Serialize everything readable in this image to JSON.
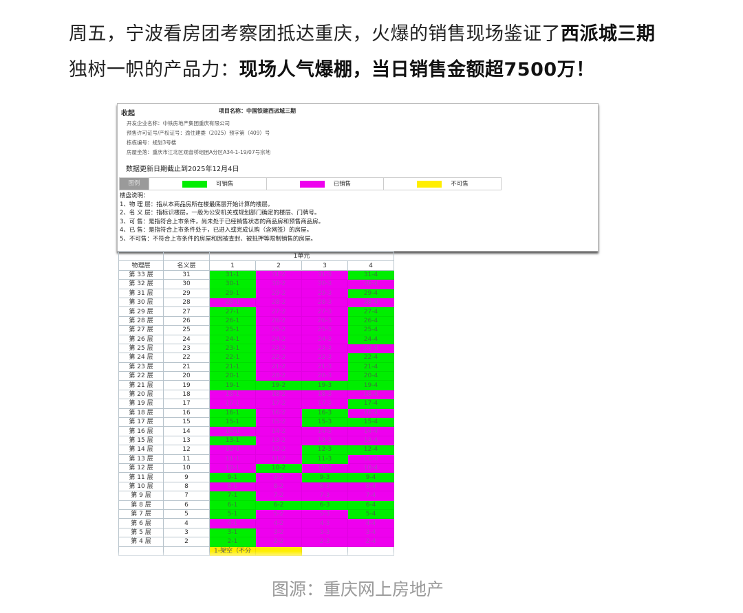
{
  "headline": {
    "part1": "周五，宁波看房团考察团抵达重庆，火爆的销售现场鉴证了",
    "bold1": "西派城三期",
    "part2": "独树一帜的产品力：",
    "bold2": "现场人气爆棚，当日销售金额超7500万！"
  },
  "panel": {
    "title": "收起",
    "project_name": "项目名称：中国铁建西派城三期",
    "info": [
      "开发企业名称：中铁房地产集团重庆有限公司",
      "预售许可证号/产权证号：渝住建委（2025）预字第（409）号",
      "栋栋编号：规划3号楼",
      "房屋坐落：重庆市江北区观音桥组团A分区A34-1-19/07号宗地"
    ],
    "update_date": "数据更新日期截止到2025年12月4日",
    "legend": {
      "header": "图例",
      "items": [
        {
          "label": "可销售",
          "color": "#00ee00"
        },
        {
          "label": "已销售",
          "color": "#ee00ee"
        },
        {
          "label": "不可售",
          "color": "#ffee00"
        }
      ]
    },
    "notes": [
      "楼盘说明：",
      "1、物 理 层：指从本商品房所在楼最底层开始计算的楼层。",
      "2、名 义 层：指标识楼层，一般为公安机关或规划部门确定的楼层、门牌号。",
      "3、可 售：是指符合上市条件，尚未处于已经销售状态的商品房和预售商品房。",
      "4、已 售：是指符合上市条件处于，已进入或完成认购（含网签）的房屋。",
      "5、不可售：不符合上市条件的房屋和因被查封、被抵押等限制销售的房屋。"
    ]
  },
  "table": {
    "unit_header": "1单元",
    "col_physical": "物理层",
    "col_nominal": "名义层",
    "unit_cols": [
      "1",
      "2",
      "3",
      "4"
    ],
    "rows": [
      {
        "physical": "第 33 层",
        "nominal": "31",
        "status": [
          "available",
          "sold",
          "sold",
          "available"
        ]
      },
      {
        "physical": "第 32 层",
        "nominal": "30",
        "status": [
          "available",
          "sold",
          "sold",
          "sold"
        ]
      },
      {
        "physical": "第 31 层",
        "nominal": "29",
        "status": [
          "available",
          "sold",
          "sold",
          "available"
        ]
      },
      {
        "physical": "第 30 层",
        "nominal": "28",
        "status": [
          "sold",
          "sold",
          "sold",
          "sold"
        ]
      },
      {
        "physical": "第 29 层",
        "nominal": "27",
        "status": [
          "available",
          "sold",
          "sold",
          "available"
        ]
      },
      {
        "physical": "第 28 层",
        "nominal": "26",
        "status": [
          "available",
          "sold",
          "sold",
          "available"
        ]
      },
      {
        "physical": "第 27 层",
        "nominal": "25",
        "status": [
          "available",
          "sold",
          "sold",
          "available"
        ]
      },
      {
        "physical": "第 26 层",
        "nominal": "24",
        "status": [
          "available",
          "sold",
          "sold",
          "available"
        ]
      },
      {
        "physical": "第 25 层",
        "nominal": "23",
        "status": [
          "available",
          "sold",
          "sold",
          "sold"
        ]
      },
      {
        "physical": "第 24 层",
        "nominal": "22",
        "status": [
          "available",
          "sold",
          "sold",
          "available"
        ]
      },
      {
        "physical": "第 23 层",
        "nominal": "21",
        "status": [
          "available",
          "sold",
          "sold",
          "available"
        ]
      },
      {
        "physical": "第 22 层",
        "nominal": "20",
        "status": [
          "available",
          "sold",
          "sold",
          "available"
        ]
      },
      {
        "physical": "第 21 层",
        "nominal": "19",
        "status": [
          "available",
          "available",
          "available",
          "available"
        ]
      },
      {
        "physical": "第 20 层",
        "nominal": "18",
        "status": [
          "sold",
          "sold",
          "sold",
          "sold"
        ]
      },
      {
        "physical": "第 19 层",
        "nominal": "17",
        "status": [
          "sold",
          "sold",
          "sold",
          "available"
        ]
      },
      {
        "physical": "第 18 层",
        "nominal": "16",
        "status": [
          "available",
          "sold",
          "available",
          "sold"
        ]
      },
      {
        "physical": "第 17 层",
        "nominal": "15",
        "status": [
          "available",
          "sold",
          "available",
          "available"
        ]
      },
      {
        "physical": "第 16 层",
        "nominal": "14",
        "status": [
          "sold",
          "sold",
          "sold",
          "sold"
        ]
      },
      {
        "physical": "第 15 层",
        "nominal": "13",
        "status": [
          "available",
          "sold",
          "sold",
          "sold"
        ]
      },
      {
        "physical": "第 14 层",
        "nominal": "12",
        "status": [
          "sold",
          "sold",
          "available",
          "available"
        ]
      },
      {
        "physical": "第 13 层",
        "nominal": "11",
        "status": [
          "sold",
          "sold",
          "available",
          "sold"
        ]
      },
      {
        "physical": "第 12 层",
        "nominal": "10",
        "status": [
          "sold",
          "available",
          "sold",
          "sold"
        ]
      },
      {
        "physical": "第 11 层",
        "nominal": "9",
        "status": [
          "available",
          "sold",
          "available",
          "available"
        ]
      },
      {
        "physical": "第 10 层",
        "nominal": "8",
        "status": [
          "sold",
          "sold",
          "sold",
          "sold"
        ]
      },
      {
        "physical": "第 9 层",
        "nominal": "7",
        "status": [
          "available",
          "sold",
          "sold",
          "sold"
        ]
      },
      {
        "physical": "第 8 层",
        "nominal": "6",
        "status": [
          "available",
          "available",
          "available",
          "available"
        ]
      },
      {
        "physical": "第 7 层",
        "nominal": "5",
        "status": [
          "available",
          "sold",
          "sold",
          "available"
        ]
      },
      {
        "physical": "第 6 层",
        "nominal": "4",
        "status": [
          "sold",
          "sold",
          "sold",
          "sold"
        ]
      },
      {
        "physical": "第 5 层",
        "nominal": "3",
        "status": [
          "available",
          "sold",
          "sold",
          "sold"
        ]
      },
      {
        "physical": "第 4 层",
        "nominal": "2",
        "status": [
          "available",
          "sold",
          "sold",
          "sold"
        ]
      }
    ],
    "partial_row": {
      "cells": [
        "1-架空（不分",
        ""
      ],
      "status": [
        "unavailable",
        "unavailable",
        "",
        ""
      ]
    }
  },
  "caption": "图源：重庆网上房地产"
}
